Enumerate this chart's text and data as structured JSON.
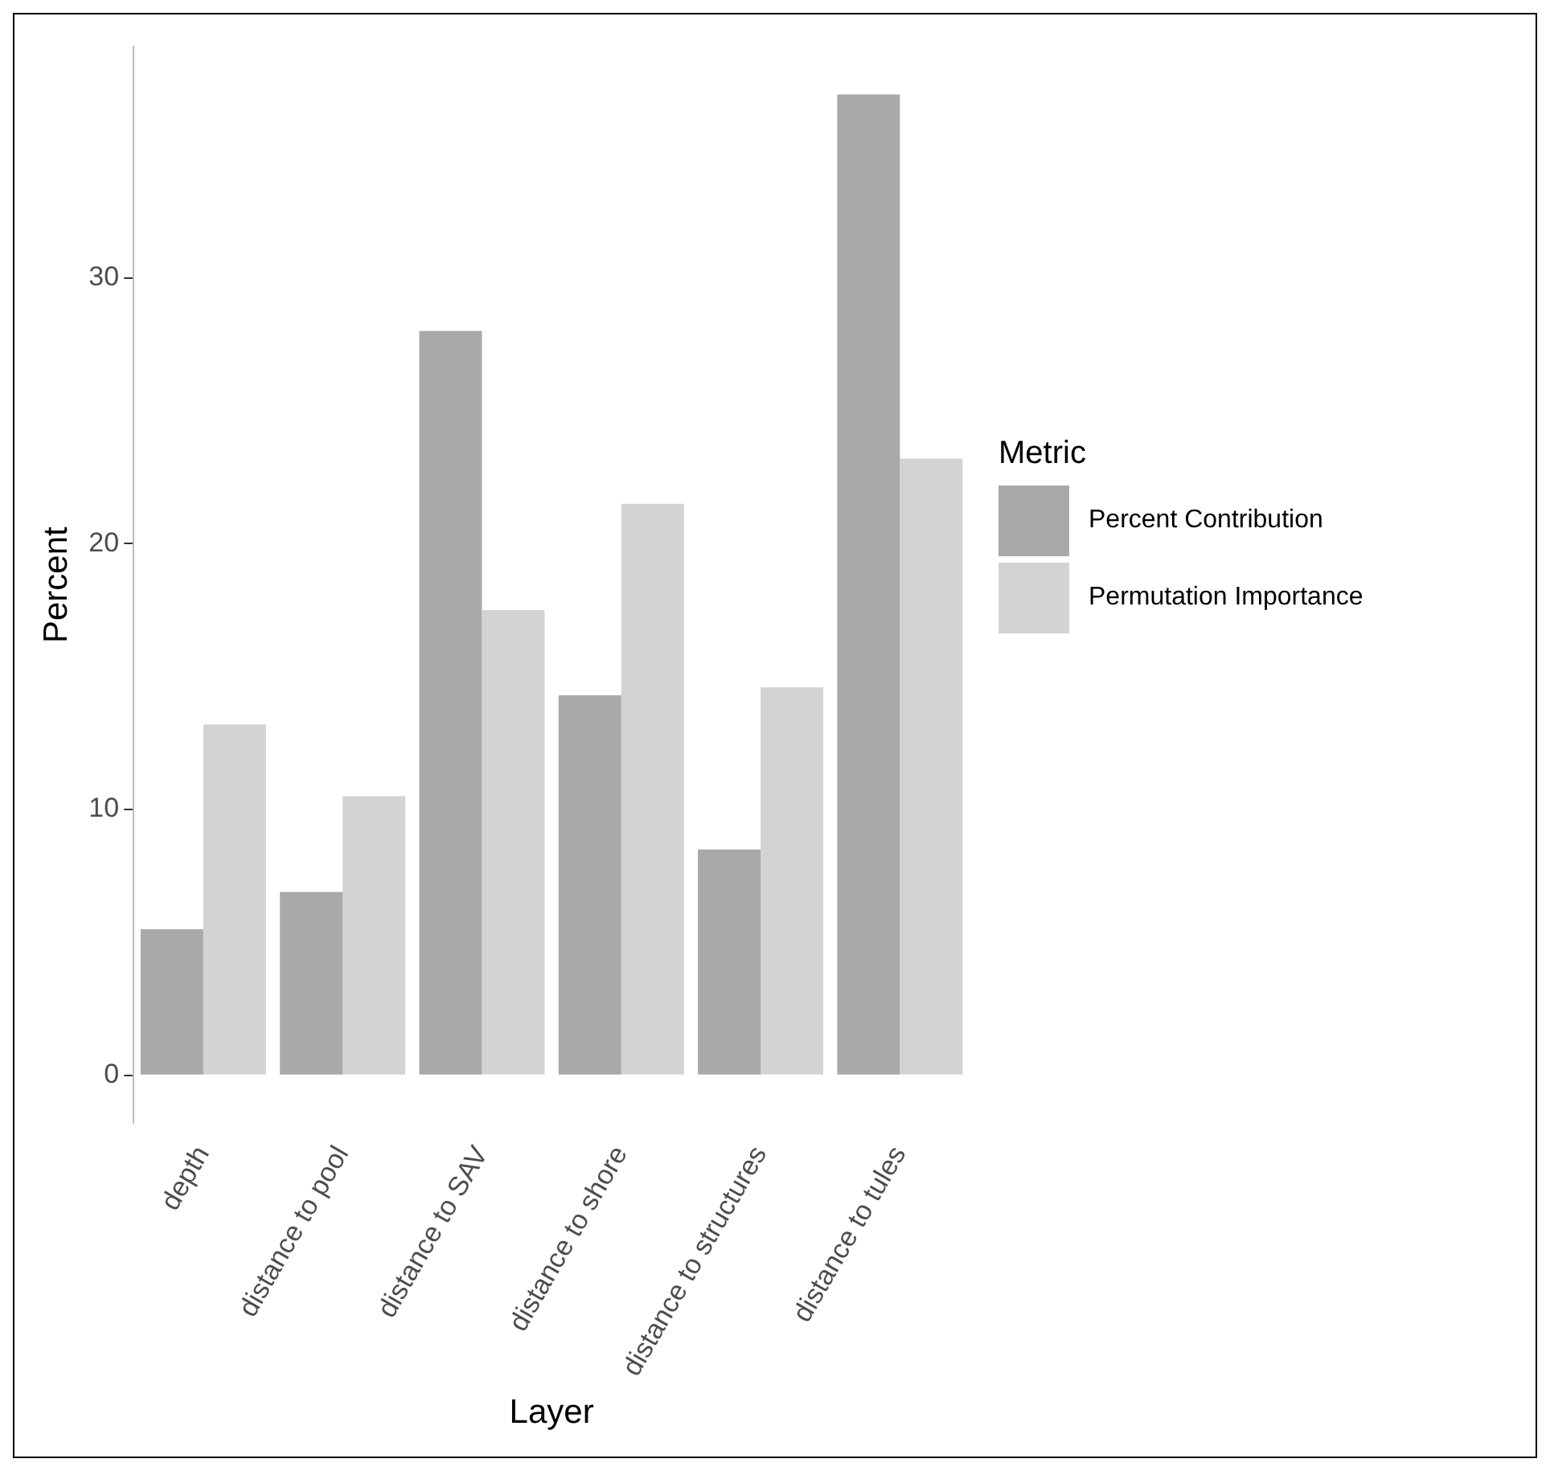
{
  "chart_data": {
    "type": "bar",
    "xlabel": "Layer",
    "ylabel": "Percent",
    "legend_title": "Metric",
    "categories": [
      "depth",
      "distance to pool",
      "distance to SAV",
      "distance to shore",
      "distance to structures",
      "distance to tules"
    ],
    "series": [
      {
        "name": "Percent Contribution",
        "color": "#a9a9a9",
        "values": [
          5.5,
          6.9,
          28.0,
          14.3,
          8.5,
          36.9
        ]
      },
      {
        "name": "Permutation Importance",
        "color": "#d3d3d3",
        "values": [
          13.2,
          10.5,
          17.5,
          21.5,
          14.6,
          23.2
        ]
      }
    ],
    "ylim": [
      -1.8,
      38.7
    ],
    "yticks": [
      0,
      10,
      20,
      30
    ],
    "grid": false,
    "legend": "right"
  }
}
